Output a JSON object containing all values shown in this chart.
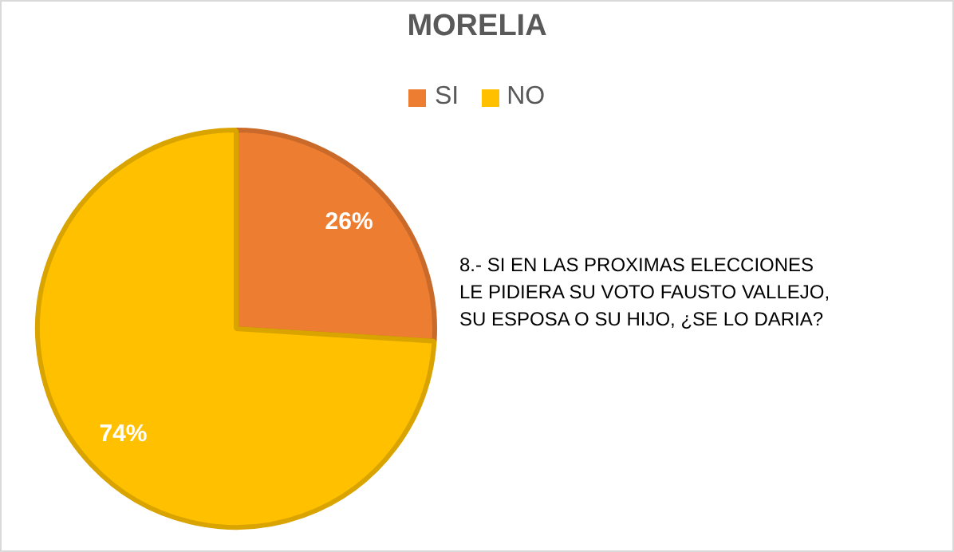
{
  "chart_data": {
    "type": "pie",
    "title": "MORELIA",
    "categories": [
      "SI",
      "NO"
    ],
    "values": [
      26,
      74
    ],
    "value_labels": [
      "26%",
      "74%"
    ],
    "colors": [
      "#ed7d31",
      "#ffc000"
    ],
    "legend": "top",
    "annotations": [
      "8.- SI EN LAS PROXIMAS ELECCIONES\nLE PIDIERA SU VOTO FAUSTO VALLEJO,\nSU ESPOSA O SU HIJO, ¿SE LO DARIA?"
    ]
  }
}
